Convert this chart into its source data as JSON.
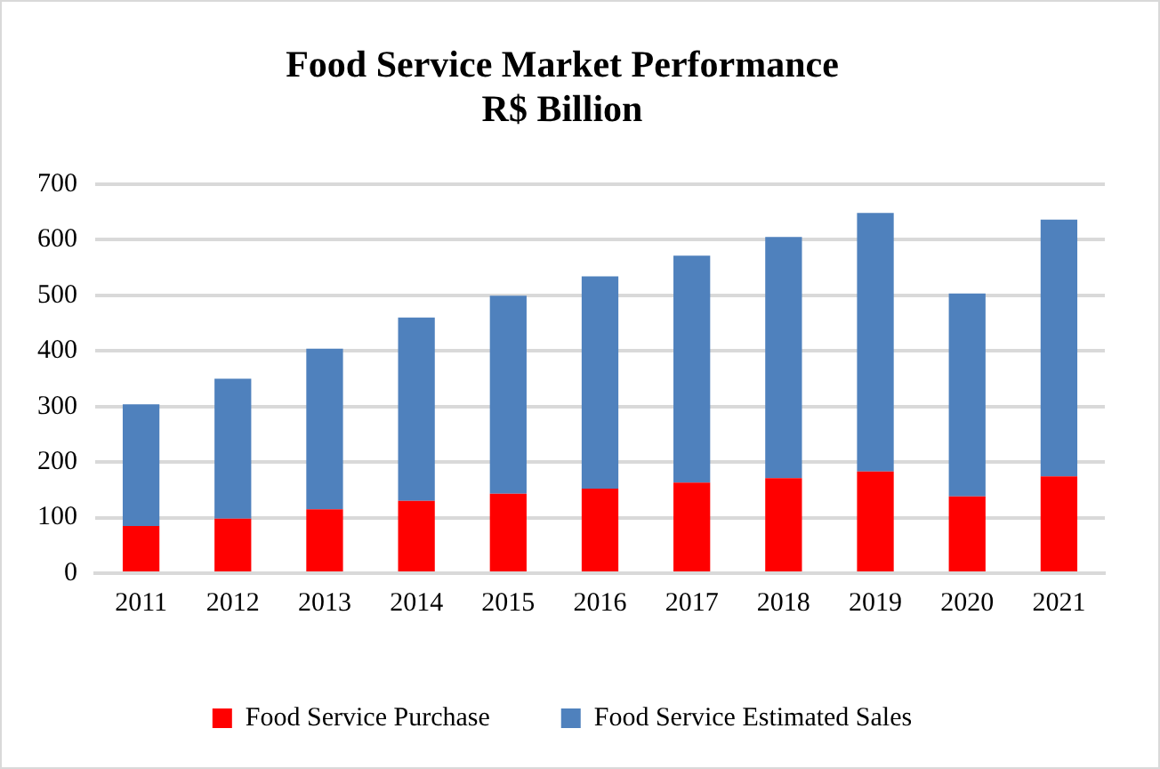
{
  "chart_data": {
    "type": "bar",
    "title": [
      "Food Service Market Performance",
      "R$ Billion"
    ],
    "categories": [
      "2011",
      "2012",
      "2013",
      "2014",
      "2015",
      "2016",
      "2017",
      "2018",
      "2019",
      "2020",
      "2021"
    ],
    "stacked": true,
    "series": [
      {
        "name": "Food Service Purchase",
        "color": "#ff0000",
        "values": [
          85,
          98,
          115,
          130,
          143,
          152,
          163,
          171,
          183,
          138,
          174
        ]
      },
      {
        "name": "Food Service Estimated Sales",
        "color": "#4f81bd",
        "values": [
          219,
          252,
          289,
          330,
          356,
          382,
          408,
          434,
          465,
          365,
          462
        ]
      }
    ],
    "ylim": [
      0,
      700
    ],
    "yticks": [
      0,
      100,
      200,
      300,
      400,
      500,
      600,
      700
    ],
    "grid": "y",
    "legend": "bottom"
  }
}
